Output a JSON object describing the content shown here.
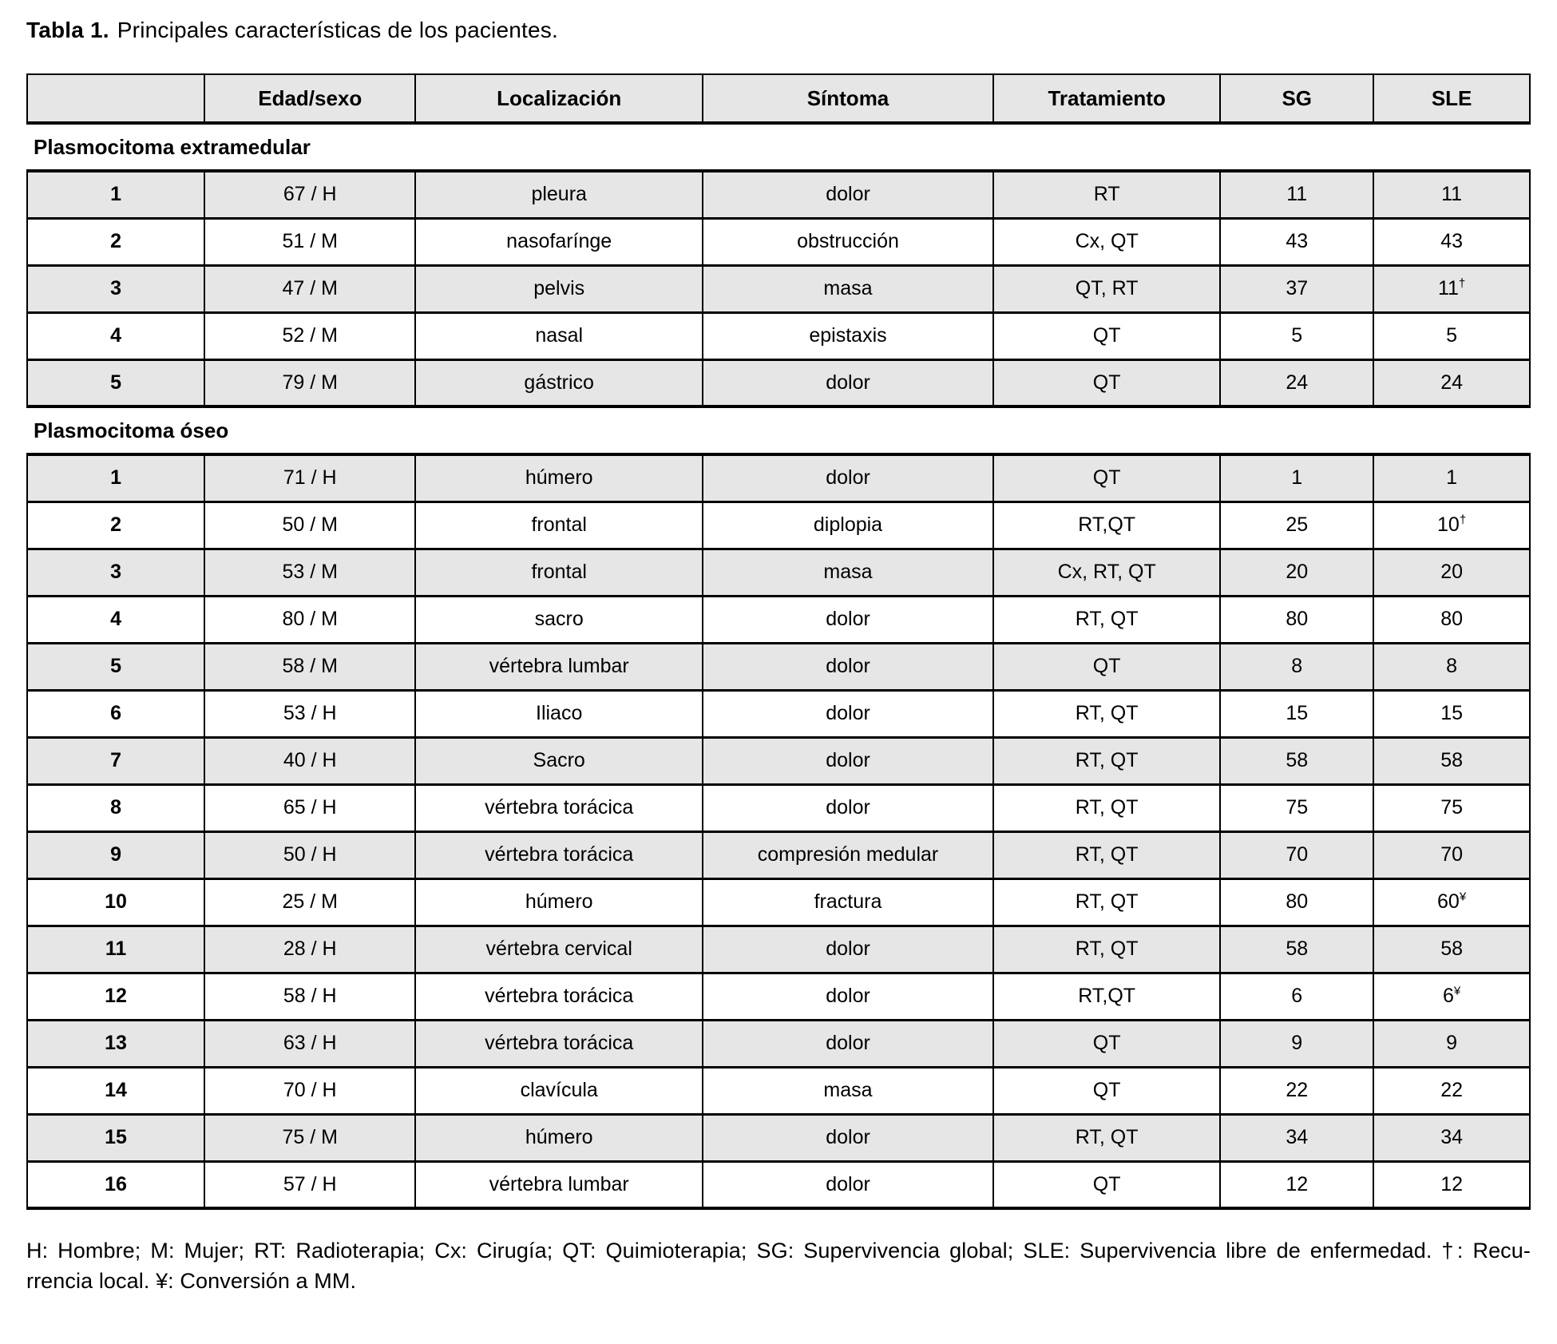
{
  "title": {
    "label": "Tabla 1.",
    "text": "Principales características de los pacientes."
  },
  "colors": {
    "row_shade": "#e6e6e6",
    "border": "#000000",
    "background": "#ffffff"
  },
  "table": {
    "headers": [
      "",
      "Edad/sexo",
      "Localización",
      "Síntoma",
      "Tratamiento",
      "SG",
      "SLE"
    ],
    "sections": [
      {
        "label": "Plasmocitoma extramedular",
        "rows": [
          [
            "1",
            "67 / H",
            "pleura",
            "dolor",
            "RT",
            "11",
            "11",
            ""
          ],
          [
            "2",
            "51 / M",
            "nasofarínge",
            "obstrucción",
            "Cx, QT",
            "43",
            "43",
            ""
          ],
          [
            "3",
            "47 / M",
            "pelvis",
            "masa",
            "QT, RT",
            "37",
            "11",
            "†"
          ],
          [
            "4",
            "52 / M",
            "nasal",
            "epistaxis",
            "QT",
            "5",
            "5",
            ""
          ],
          [
            "5",
            "79 / M",
            "gástrico",
            "dolor",
            "QT",
            "24",
            "24",
            ""
          ]
        ]
      },
      {
        "label": "Plasmocitoma óseo",
        "rows": [
          [
            "1",
            "71 / H",
            "húmero",
            "dolor",
            "QT",
            "1",
            "1",
            ""
          ],
          [
            "2",
            "50 / M",
            "frontal",
            "diplopia",
            "RT,QT",
            "25",
            "10",
            "†"
          ],
          [
            "3",
            "53 / M",
            "frontal",
            "masa",
            "Cx, RT, QT",
            "20",
            "20",
            ""
          ],
          [
            "4",
            "80 / M",
            "sacro",
            "dolor",
            "RT, QT",
            "80",
            "80",
            ""
          ],
          [
            "5",
            "58 / M",
            "vértebra lumbar",
            "dolor",
            "QT",
            "8",
            "8",
            ""
          ],
          [
            "6",
            "53 / H",
            "Iliaco",
            "dolor",
            "RT, QT",
            "15",
            "15",
            ""
          ],
          [
            "7",
            "40 / H",
            "Sacro",
            "dolor",
            "RT, QT",
            "58",
            "58",
            ""
          ],
          [
            "8",
            "65 / H",
            "vértebra torácica",
            "dolor",
            "RT, QT",
            "75",
            "75",
            ""
          ],
          [
            "9",
            "50 / H",
            "vértebra torácica",
            "compresión medular",
            "RT, QT",
            "70",
            "70",
            ""
          ],
          [
            "10",
            "25 / M",
            "húmero",
            "fractura",
            "RT, QT",
            "80",
            "60",
            "¥"
          ],
          [
            "11",
            "28 / H",
            "vértebra cervical",
            "dolor",
            "RT, QT",
            "58",
            "58",
            ""
          ],
          [
            "12",
            "58 / H",
            "vértebra torácica",
            "dolor",
            "RT,QT",
            "6",
            "6",
            "¥"
          ],
          [
            "13",
            "63 / H",
            "vértebra torácica",
            "dolor",
            "QT",
            "9",
            "9",
            ""
          ],
          [
            "14",
            "70 / H",
            "clavícula",
            "masa",
            "QT",
            "22",
            "22",
            ""
          ],
          [
            "15",
            "75 / M",
            "húmero",
            "dolor",
            "RT, QT",
            "34",
            "34",
            ""
          ],
          [
            "16",
            "57 / H",
            "vértebra lumbar",
            "dolor",
            "QT",
            "12",
            "12",
            ""
          ]
        ]
      }
    ]
  },
  "footnote": {
    "line1": "H: Hombre; M: Mujer; RT: Radioterapia; Cx: Cirugía; QT: Quimioterapia; SG: Supervivencia global; SLE: Supervivencia libre de enfermedad. †: Recu-",
    "line2": "rrencia local. ¥: Conversión a MM."
  }
}
